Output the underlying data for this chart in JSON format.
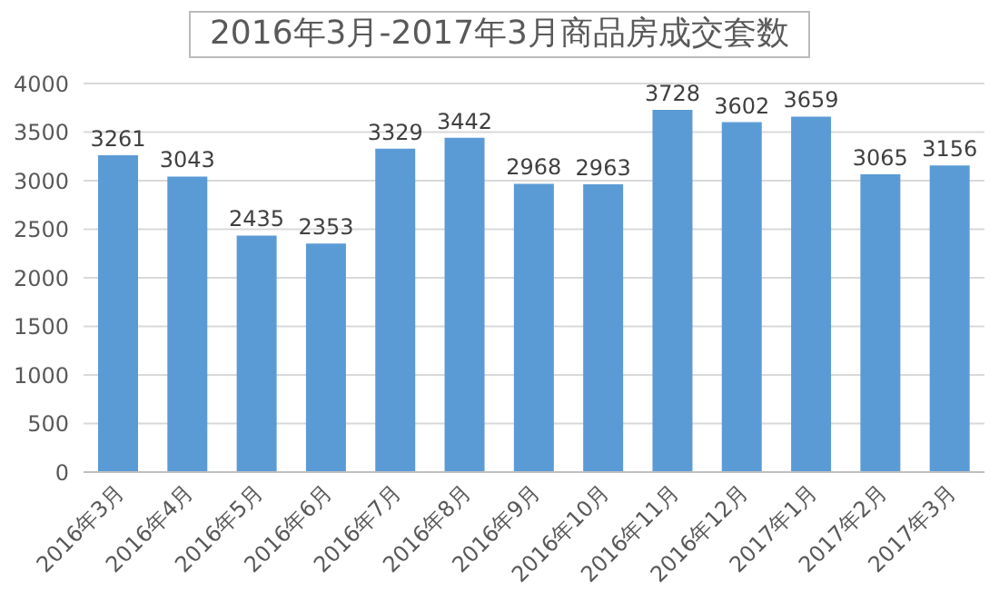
{
  "chart_data": {
    "type": "bar",
    "title": "2016年3月-2017年3月商品房成交套数",
    "categories": [
      "2016年3月",
      "2016年4月",
      "2016年5月",
      "2016年6月",
      "2016年7月",
      "2016年8月",
      "2016年9月",
      "2016年10月",
      "2016年11月",
      "2016年12月",
      "2017年1月",
      "2017年2月",
      "2017年3月"
    ],
    "values": [
      3261,
      3043,
      2435,
      2353,
      3329,
      3442,
      2968,
      2963,
      3728,
      3602,
      3659,
      3065,
      3156
    ],
    "color": "#5b9bd5",
    "ylim": [
      0,
      4000
    ],
    "yticks": [
      0,
      500,
      1000,
      1500,
      2000,
      2500,
      3000,
      3500,
      4000
    ],
    "grid": "y",
    "data_labels": true
  }
}
